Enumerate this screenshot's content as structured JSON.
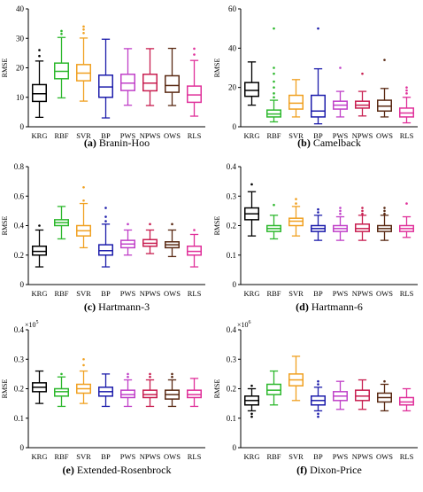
{
  "colors": {
    "KRG": "#000000",
    "RBF": "#2db82d",
    "SVR": "#f0a020",
    "BP": "#1c1cab",
    "PWS": "#c040c8",
    "NPWS": "#c81e50",
    "OWS": "#5a2a14",
    "RLS": "#e0309a"
  },
  "chart_data": [
    {
      "type": "box",
      "letter": "(a)",
      "name": "Branin-Hoo",
      "ylabel": "RMSE",
      "ylim": [
        0,
        40
      ],
      "yticks": [
        0,
        10,
        20,
        30,
        40
      ],
      "exponent": "",
      "categories": [
        "KRG",
        "RBF",
        "SVR",
        "BP",
        "PWS",
        "NPWS",
        "OWS",
        "RLS"
      ],
      "boxes": [
        {
          "whislo": 3.2,
          "q1": 8.6,
          "med": 11.2,
          "q3": 14.3,
          "whishi": 22.3,
          "fliers": [
            24,
            26
          ]
        },
        {
          "whislo": 9.8,
          "q1": 16.3,
          "med": 18.8,
          "q3": 21.6,
          "whishi": 30.3,
          "fliers": [
            31.5,
            32.5
          ]
        },
        {
          "whislo": 8.7,
          "q1": 15.6,
          "med": 18.2,
          "q3": 21.1,
          "whishi": 30.1,
          "fliers": [
            31.8,
            33,
            34
          ]
        },
        {
          "whislo": 3.0,
          "q1": 10.0,
          "med": 13.5,
          "q3": 17.5,
          "whishi": 29.7,
          "fliers": []
        },
        {
          "whislo": 7.3,
          "q1": 12.3,
          "med": 14.8,
          "q3": 17.8,
          "whishi": 26.5,
          "fliers": []
        },
        {
          "whislo": 7.2,
          "q1": 12.2,
          "med": 14.8,
          "q3": 17.8,
          "whishi": 26.5,
          "fliers": []
        },
        {
          "whislo": 7.2,
          "q1": 11.7,
          "med": 14.0,
          "q3": 17.3,
          "whishi": 26.6,
          "fliers": []
        },
        {
          "whislo": 3.6,
          "q1": 8.3,
          "med": 10.8,
          "q3": 13.8,
          "whishi": 22.5,
          "fliers": [
            24.5,
            26.5
          ]
        }
      ]
    },
    {
      "type": "box",
      "letter": "(b)",
      "name": "Camelback",
      "ylabel": "RMSE",
      "ylim": [
        0,
        60
      ],
      "yticks": [
        0,
        20,
        40,
        60
      ],
      "exponent": "",
      "categories": [
        "KRG",
        "RBF",
        "SVR",
        "BP",
        "PWS",
        "NPWS",
        "OWS",
        "RLS"
      ],
      "boxes": [
        {
          "whislo": 11,
          "q1": 15.5,
          "med": 18.5,
          "q3": 22.5,
          "whishi": 33,
          "fliers": []
        },
        {
          "whislo": 2.5,
          "q1": 5,
          "med": 6.5,
          "q3": 8.5,
          "whishi": 13.5,
          "fliers": [
            15,
            17,
            20,
            23,
            27,
            30,
            50
          ]
        },
        {
          "whislo": 5,
          "q1": 9,
          "med": 12,
          "q3": 16,
          "whishi": 24,
          "fliers": []
        },
        {
          "whislo": 1.5,
          "q1": 5,
          "med": 8,
          "q3": 16,
          "whishi": 29.5,
          "fliers": [
            50
          ]
        },
        {
          "whislo": 5,
          "q1": 9,
          "med": 11,
          "q3": 13,
          "whishi": 18,
          "fliers": [
            30
          ]
        },
        {
          "whislo": 5.5,
          "q1": 9.5,
          "med": 11,
          "q3": 13,
          "whishi": 18,
          "fliers": [
            27
          ]
        },
        {
          "whislo": 5,
          "q1": 8,
          "med": 10.5,
          "q3": 13.5,
          "whishi": 19.5,
          "fliers": [
            34
          ]
        },
        {
          "whislo": 2,
          "q1": 5,
          "med": 7,
          "q3": 9.5,
          "whishi": 15,
          "fliers": [
            17,
            18.5,
            20
          ]
        }
      ]
    },
    {
      "type": "box",
      "letter": "(c)",
      "name": "Hartmann-3",
      "ylabel": "RMSE",
      "ylim": [
        0,
        0.8
      ],
      "yticks": [
        0,
        0.2,
        0.4,
        0.6,
        0.8
      ],
      "exponent": "",
      "categories": [
        "KRG",
        "RBF",
        "SVR",
        "BP",
        "PWS",
        "NPWS",
        "OWS",
        "RLS"
      ],
      "boxes": [
        {
          "whislo": 0.12,
          "q1": 0.2,
          "med": 0.225,
          "q3": 0.26,
          "whishi": 0.37,
          "fliers": [
            0.4
          ]
        },
        {
          "whislo": 0.31,
          "q1": 0.4,
          "med": 0.42,
          "q3": 0.44,
          "whishi": 0.53,
          "fliers": []
        },
        {
          "whislo": 0.25,
          "q1": 0.33,
          "med": 0.365,
          "q3": 0.4,
          "whishi": 0.55,
          "fliers": [
            0.57,
            0.66
          ]
        },
        {
          "whislo": 0.12,
          "q1": 0.2,
          "med": 0.23,
          "q3": 0.27,
          "whishi": 0.41,
          "fliers": [
            0.43,
            0.46,
            0.52
          ]
        },
        {
          "whislo": 0.2,
          "q1": 0.25,
          "med": 0.275,
          "q3": 0.3,
          "whishi": 0.37,
          "fliers": [
            0.41
          ]
        },
        {
          "whislo": 0.21,
          "q1": 0.26,
          "med": 0.28,
          "q3": 0.305,
          "whishi": 0.37,
          "fliers": [
            0.41
          ]
        },
        {
          "whislo": 0.19,
          "q1": 0.25,
          "med": 0.27,
          "q3": 0.29,
          "whishi": 0.37,
          "fliers": [
            0.41
          ]
        },
        {
          "whislo": 0.12,
          "q1": 0.2,
          "med": 0.225,
          "q3": 0.26,
          "whishi": 0.34,
          "fliers": [
            0.37
          ]
        }
      ]
    },
    {
      "type": "box",
      "letter": "(d)",
      "name": "Hartmann-6",
      "ylabel": "RMSE",
      "ylim": [
        0,
        0.4
      ],
      "yticks": [
        0,
        0.1,
        0.2,
        0.3,
        0.4
      ],
      "exponent": "",
      "categories": [
        "KRG",
        "RBF",
        "SVR",
        "BP",
        "PWS",
        "NPWS",
        "OWS",
        "RLS"
      ],
      "boxes": [
        {
          "whislo": 0.165,
          "q1": 0.22,
          "med": 0.24,
          "q3": 0.26,
          "whishi": 0.315,
          "fliers": [
            0.34
          ]
        },
        {
          "whislo": 0.155,
          "q1": 0.18,
          "med": 0.19,
          "q3": 0.2,
          "whishi": 0.235,
          "fliers": [
            0.27
          ]
        },
        {
          "whislo": 0.165,
          "q1": 0.2,
          "med": 0.215,
          "q3": 0.225,
          "whishi": 0.265,
          "fliers": [
            0.275,
            0.29
          ]
        },
        {
          "whislo": 0.15,
          "q1": 0.18,
          "med": 0.19,
          "q3": 0.2,
          "whishi": 0.235,
          "fliers": [
            0.245,
            0.255
          ]
        },
        {
          "whislo": 0.15,
          "q1": 0.18,
          "med": 0.19,
          "q3": 0.2,
          "whishi": 0.23,
          "fliers": [
            0.24,
            0.25,
            0.26
          ]
        },
        {
          "whislo": 0.15,
          "q1": 0.18,
          "med": 0.19,
          "q3": 0.205,
          "whishi": 0.235,
          "fliers": [
            0.24,
            0.25,
            0.26
          ]
        },
        {
          "whislo": 0.15,
          "q1": 0.18,
          "med": 0.19,
          "q3": 0.2,
          "whishi": 0.235,
          "fliers": [
            0.24,
            0.25,
            0.26
          ]
        },
        {
          "whislo": 0.16,
          "q1": 0.18,
          "med": 0.19,
          "q3": 0.2,
          "whishi": 0.23,
          "fliers": [
            0.275
          ]
        }
      ]
    },
    {
      "type": "box",
      "letter": "(e)",
      "name": "Extended-Rosenbrock",
      "ylabel": "RMSE",
      "ylim": [
        0,
        0.4
      ],
      "yticks": [
        0,
        0.1,
        0.2,
        0.3,
        0.4
      ],
      "exponent": "5",
      "categories": [
        "KRG",
        "RBF",
        "SVR",
        "BP",
        "PWS",
        "NPWS",
        "OWS",
        "RLS"
      ],
      "boxes": [
        {
          "whislo": 0.15,
          "q1": 0.19,
          "med": 0.205,
          "q3": 0.22,
          "whishi": 0.26,
          "fliers": []
        },
        {
          "whislo": 0.14,
          "q1": 0.175,
          "med": 0.19,
          "q3": 0.2,
          "whishi": 0.24,
          "fliers": [
            0.25
          ]
        },
        {
          "whislo": 0.15,
          "q1": 0.185,
          "med": 0.2,
          "q3": 0.215,
          "whishi": 0.26,
          "fliers": [
            0.28,
            0.3
          ]
        },
        {
          "whislo": 0.14,
          "q1": 0.175,
          "med": 0.19,
          "q3": 0.205,
          "whishi": 0.25,
          "fliers": []
        },
        {
          "whislo": 0.14,
          "q1": 0.17,
          "med": 0.18,
          "q3": 0.195,
          "whishi": 0.23,
          "fliers": [
            0.24,
            0.25
          ]
        },
        {
          "whislo": 0.14,
          "q1": 0.17,
          "med": 0.18,
          "q3": 0.195,
          "whishi": 0.23,
          "fliers": [
            0.24,
            0.25
          ]
        },
        {
          "whislo": 0.14,
          "q1": 0.165,
          "med": 0.18,
          "q3": 0.195,
          "whishi": 0.23,
          "fliers": [
            0.24,
            0.25
          ]
        },
        {
          "whislo": 0.14,
          "q1": 0.17,
          "med": 0.18,
          "q3": 0.195,
          "whishi": 0.235,
          "fliers": []
        }
      ]
    },
    {
      "type": "box",
      "letter": "(f)",
      "name": "Dixon-Price",
      "ylabel": "RMSE",
      "ylim": [
        0,
        0.4
      ],
      "yticks": [
        0,
        0.1,
        0.2,
        0.3,
        0.4
      ],
      "exponent": "6",
      "categories": [
        "KRG",
        "RBF",
        "SVR",
        "BP",
        "PWS",
        "NPWS",
        "OWS",
        "RLS"
      ],
      "boxes": [
        {
          "whislo": 0.125,
          "q1": 0.145,
          "med": 0.16,
          "q3": 0.175,
          "whishi": 0.2,
          "fliers": [
            0.115,
            0.105,
            0.21
          ]
        },
        {
          "whislo": 0.145,
          "q1": 0.18,
          "med": 0.195,
          "q3": 0.215,
          "whishi": 0.26,
          "fliers": []
        },
        {
          "whislo": 0.16,
          "q1": 0.21,
          "med": 0.23,
          "q3": 0.25,
          "whishi": 0.31,
          "fliers": []
        },
        {
          "whislo": 0.125,
          "q1": 0.145,
          "med": 0.16,
          "q3": 0.175,
          "whishi": 0.205,
          "fliers": [
            0.115,
            0.105,
            0.215,
            0.225
          ]
        },
        {
          "whislo": 0.13,
          "q1": 0.16,
          "med": 0.175,
          "q3": 0.19,
          "whishi": 0.225,
          "fliers": []
        },
        {
          "whislo": 0.13,
          "q1": 0.16,
          "med": 0.175,
          "q3": 0.195,
          "whishi": 0.23,
          "fliers": []
        },
        {
          "whislo": 0.125,
          "q1": 0.155,
          "med": 0.17,
          "q3": 0.185,
          "whishi": 0.215,
          "fliers": [
            0.225
          ]
        },
        {
          "whislo": 0.125,
          "q1": 0.145,
          "med": 0.155,
          "q3": 0.17,
          "whishi": 0.2,
          "fliers": []
        }
      ]
    }
  ]
}
